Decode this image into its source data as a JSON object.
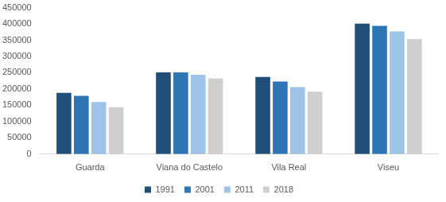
{
  "chart_data": {
    "type": "bar",
    "categories": [
      "Guarda",
      "Viana do Castelo",
      "Vila Real",
      "Viseu"
    ],
    "series": [
      {
        "name": "1991",
        "color": "#1f4e79",
        "values": [
          188000,
          251000,
          237000,
          401000
        ]
      },
      {
        "name": "2001",
        "color": "#2e75b6",
        "values": [
          179000,
          251000,
          223000,
          394000
        ]
      },
      {
        "name": "2011",
        "color": "#9dc3e6",
        "values": [
          160000,
          244000,
          206000,
          377000
        ]
      },
      {
        "name": "2018",
        "color": "#d0cece",
        "values": [
          144000,
          232000,
          192000,
          354000
        ]
      }
    ],
    "ylim": [
      0,
      450000
    ],
    "yticks": [
      0,
      50000,
      100000,
      150000,
      200000,
      250000,
      300000,
      350000,
      400000,
      450000
    ],
    "grid": false,
    "legend": "bottom"
  }
}
